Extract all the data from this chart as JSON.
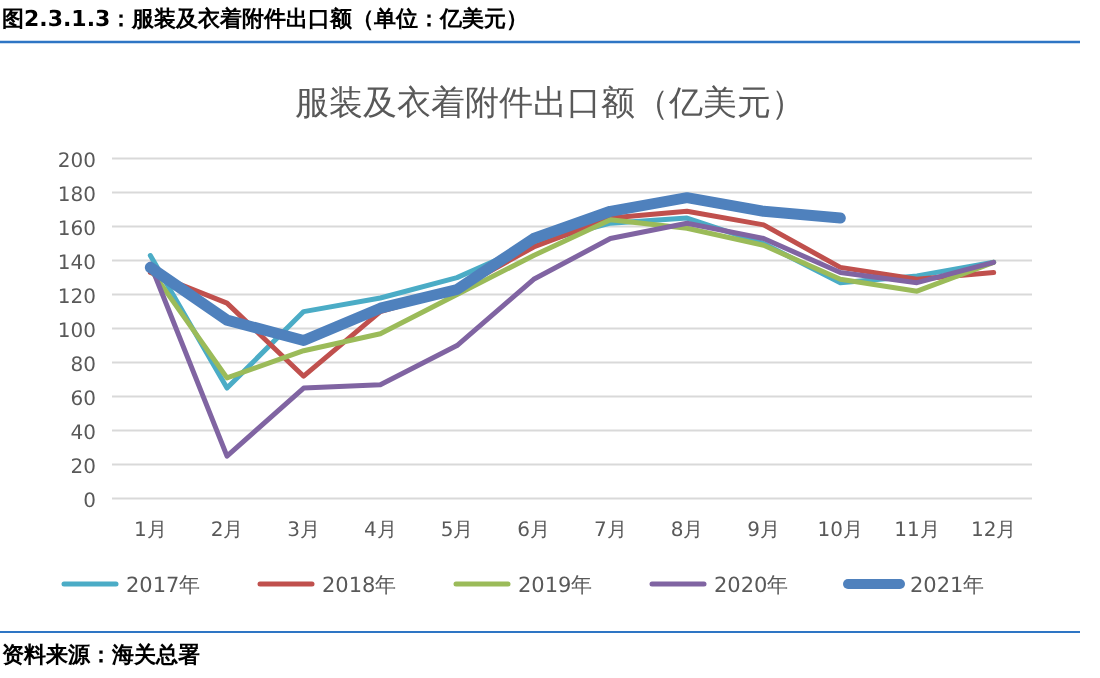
{
  "chart_data": {
    "type": "line",
    "title": "服装及衣着附件出口额（亿美元）",
    "annotations": [
      "图2.3.1.3：服装及衣着附件出口额（单位：亿美元）",
      "资料来源：海关总署"
    ],
    "categories": [
      "1月",
      "2月",
      "3月",
      "4月",
      "5月",
      "6月",
      "7月",
      "8月",
      "9月",
      "10月",
      "11月",
      "12月"
    ],
    "ylim": [
      0,
      200
    ],
    "yticks": [
      0,
      20,
      40,
      60,
      80,
      100,
      120,
      140,
      160,
      180,
      200
    ],
    "grid": "y",
    "legend": "bottom",
    "marker": "none",
    "line_style": "solid",
    "series": [
      {
        "name": "2017年",
        "color": "#4bacc6",
        "values": [
          143,
          65,
          110,
          118,
          130,
          150,
          162,
          165,
          150,
          127,
          131,
          139
        ]
      },
      {
        "name": "2018年",
        "color": "#c0504d",
        "values": [
          133,
          115,
          72,
          110,
          123,
          148,
          165,
          169,
          161,
          136,
          129,
          133
        ]
      },
      {
        "name": "2019年",
        "color": "#9bbb59",
        "values": [
          135,
          71,
          87,
          97,
          120,
          143,
          164,
          159,
          149,
          129,
          122,
          139
        ]
      },
      {
        "name": "2020年",
        "color": "#8064a2",
        "values": [
          138,
          25,
          65,
          67,
          90,
          129,
          153,
          162,
          153,
          133,
          127,
          139
        ]
      },
      {
        "name": "2021年",
        "color": "#4f81bd",
        "values": [
          136,
          105,
          93,
          112,
          123,
          153,
          169,
          177,
          169,
          165,
          null,
          null
        ]
      }
    ]
  }
}
